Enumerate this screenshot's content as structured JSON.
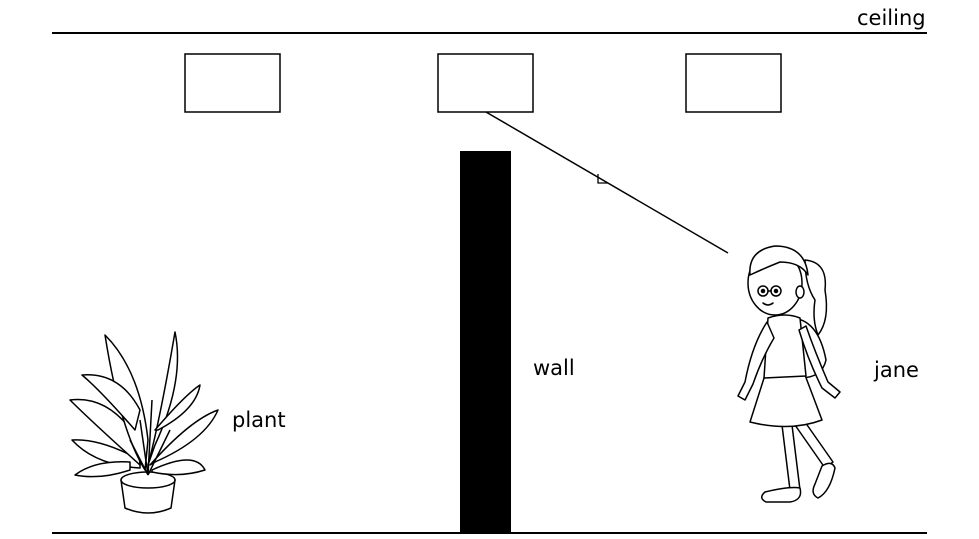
{
  "labels": {
    "ceiling": "ceiling",
    "wall": "wall",
    "plant": "plant",
    "jane": "jane"
  },
  "colors": {
    "ink": "#000000",
    "background": "#ffffff"
  }
}
